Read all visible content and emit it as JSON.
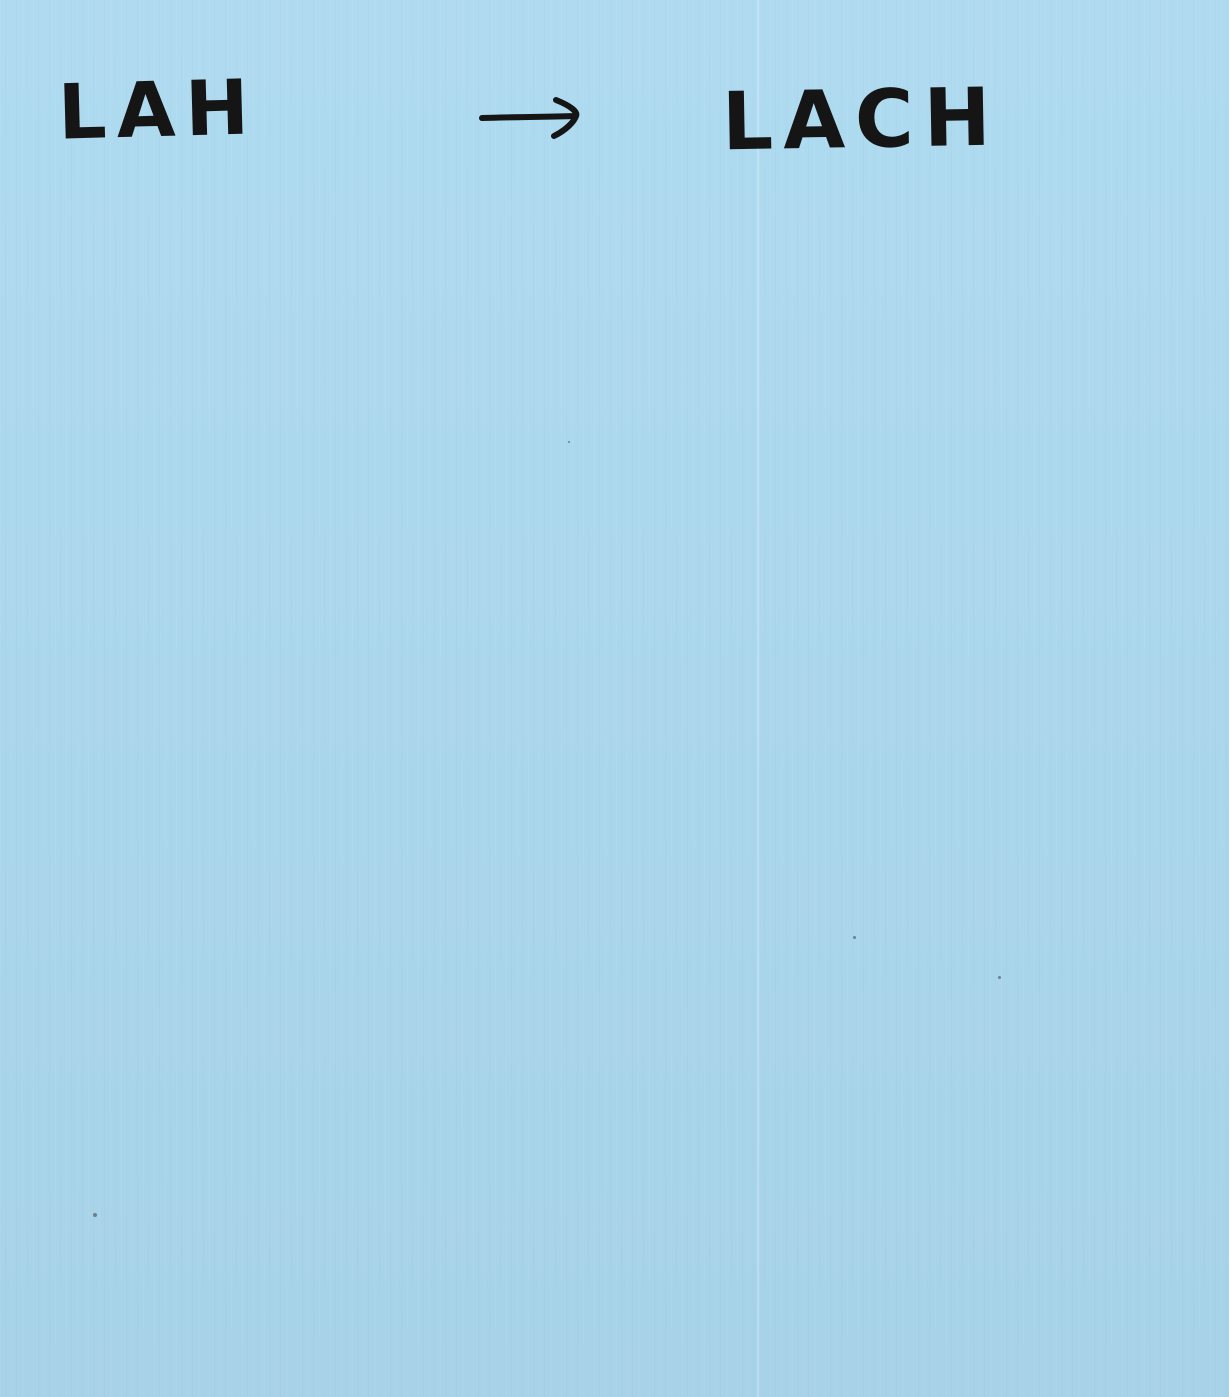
{
  "note": {
    "left_word": "LAH",
    "right_word": "LACH",
    "arrow_icon": "right-arrow-icon",
    "paper_color": "#acd9ef",
    "ink_color": "#151515"
  }
}
